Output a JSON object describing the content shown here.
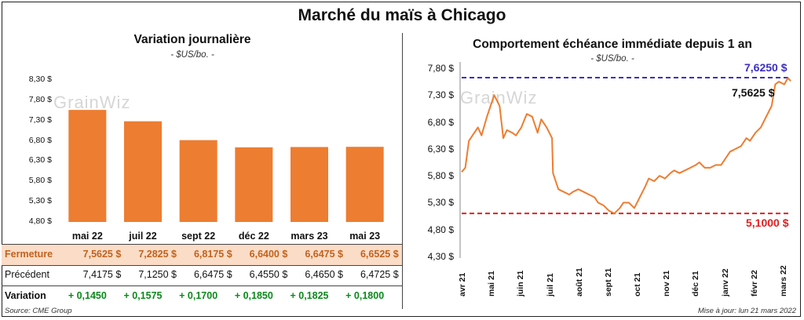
{
  "title": "Marché du maïs à Chicago",
  "left": {
    "subtitle": "Variation  journalière",
    "unit": "- $US/bo. -",
    "watermark": "GrainWiz"
  },
  "right": {
    "subtitle": "Comportement  échéance immédiate depuis 1 an",
    "unit": "- $US/bo. -",
    "watermark": "GrainWiz"
  },
  "table": {
    "fermeture_label": "Fermeture",
    "precedent_label": "Précédent",
    "variation_label": "Variation",
    "fermeture": [
      "7,5625  $",
      "7,2825  $",
      "6,8175  $",
      "6,6400  $",
      "6,6475  $",
      "6,6525  $"
    ],
    "precedent": [
      "7,4175  $",
      "7,1250  $",
      "6,6475  $",
      "6,4550  $",
      "6,4650  $",
      "6,4725  $"
    ],
    "variation": [
      "+ 0,1450",
      "+ 0,1575",
      "+ 0,1700",
      "+ 0,1850",
      "+ 0,1825",
      "+ 0,1800"
    ]
  },
  "footer": {
    "source": "Source: CME Group",
    "updated": "Mise à jour: lun 21 mars 2022"
  },
  "colors": {
    "bar": "#ed7d31",
    "line": "#ed7d31",
    "high": "#3a2fc4",
    "low": "#e02020",
    "positive": "#0a8a1a"
  },
  "chart_data": [
    {
      "type": "bar",
      "title": "Variation  journalière",
      "ylabel": "- $US/bo. -",
      "categories": [
        "mai 22",
        "juil 22",
        "sept 22",
        "déc 22",
        "mars 23",
        "mai 23"
      ],
      "values": [
        7.5625,
        7.2825,
        6.8175,
        6.64,
        6.6475,
        6.6525
      ],
      "ylim": [
        4.8,
        8.3
      ],
      "yticks": [
        "4,80 $",
        "5,30 $",
        "5,80 $",
        "6,30 $",
        "6,80 $",
        "7,30 $",
        "7,80 $",
        "8,30 $"
      ],
      "ytick_values": [
        4.8,
        5.3,
        5.8,
        6.3,
        6.8,
        7.3,
        7.8,
        8.3
      ],
      "grid": false
    },
    {
      "type": "line",
      "title": "Comportement  échéance immédiate depuis 1 an",
      "ylabel": "- $US/bo. -",
      "ylim": [
        4.3,
        7.8
      ],
      "yticks": [
        "4,30 $",
        "4,80 $",
        "5,30 $",
        "5,80 $",
        "6,30 $",
        "6,80 $",
        "7,30 $",
        "7,80 $"
      ],
      "ytick_values": [
        4.3,
        4.8,
        5.3,
        5.8,
        6.3,
        6.8,
        7.3,
        7.8
      ],
      "xticks": [
        "avr 21",
        "mai 21",
        "juin 21",
        "juil 21",
        "août 21",
        "sept 21",
        "oct 21",
        "nov 21",
        "déc 21",
        "janv 22",
        "févr 22",
        "mars 22"
      ],
      "x": [
        "2021-03-22",
        "2021-03-26",
        "2021-03-30",
        "2021-04-05",
        "2021-04-09",
        "2021-04-13",
        "2021-04-19",
        "2021-04-23",
        "2021-04-27",
        "2021-05-03",
        "2021-05-07",
        "2021-05-11",
        "2021-05-17",
        "2021-05-21",
        "2021-05-27",
        "2021-06-02",
        "2021-06-08",
        "2021-06-14",
        "2021-06-18",
        "2021-06-24",
        "2021-06-30",
        "2021-07-01",
        "2021-07-07",
        "2021-07-13",
        "2021-07-19",
        "2021-07-23",
        "2021-07-29",
        "2021-08-04",
        "2021-08-10",
        "2021-08-16",
        "2021-08-20",
        "2021-08-26",
        "2021-09-01",
        "2021-09-07",
        "2021-09-13",
        "2021-09-17",
        "2021-09-23",
        "2021-09-29",
        "2021-10-05",
        "2021-10-11",
        "2021-10-15",
        "2021-10-21",
        "2021-10-27",
        "2021-11-02",
        "2021-11-08",
        "2021-11-12",
        "2021-11-18",
        "2021-11-24",
        "2021-11-30",
        "2021-12-06",
        "2021-12-10",
        "2021-12-16",
        "2021-12-22",
        "2021-12-28",
        "2022-01-03",
        "2022-01-07",
        "2022-01-13",
        "2022-01-19",
        "2022-01-25",
        "2022-01-31",
        "2022-02-04",
        "2022-02-10",
        "2022-02-16",
        "2022-02-22",
        "2022-02-28",
        "2022-03-04",
        "2022-03-08",
        "2022-03-14",
        "2022-03-18",
        "2022-03-21"
      ],
      "y": [
        5.87,
        5.95,
        6.45,
        6.6,
        6.7,
        6.55,
        6.9,
        7.1,
        7.3,
        7.1,
        6.5,
        6.65,
        6.6,
        6.55,
        6.7,
        6.95,
        6.9,
        6.6,
        6.85,
        6.7,
        6.5,
        5.85,
        5.55,
        5.5,
        5.45,
        5.5,
        5.55,
        5.5,
        5.45,
        5.4,
        5.3,
        5.25,
        5.15,
        5.1,
        5.2,
        5.3,
        5.3,
        5.2,
        5.4,
        5.6,
        5.75,
        5.7,
        5.8,
        5.75,
        5.85,
        5.9,
        5.85,
        5.9,
        5.95,
        6.0,
        6.05,
        5.95,
        5.95,
        6.0,
        6.0,
        6.1,
        6.25,
        6.3,
        6.35,
        6.5,
        6.45,
        6.6,
        6.7,
        6.9,
        7.1,
        7.5,
        7.55,
        7.5,
        7.62,
        7.5625
      ],
      "annotations": [
        {
          "label": "7,6250 $",
          "value": 7.625,
          "color": "#3a2fc4",
          "style": "dashed-line"
        },
        {
          "label": "5,1000 $",
          "value": 5.1,
          "color": "#e02020",
          "style": "dashed-line"
        },
        {
          "label": "7,5625 $",
          "value": 7.5625,
          "color": "#111111",
          "style": "last-value"
        }
      ],
      "grid": false
    }
  ]
}
